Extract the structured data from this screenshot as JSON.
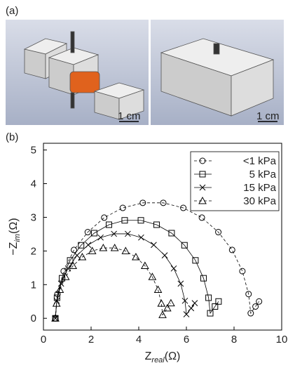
{
  "panel_labels": [
    "(a)",
    "(b)"
  ],
  "scale_bar_labels": [
    "1 cm",
    "1 cm"
  ],
  "chart_data": {
    "type": "line",
    "x_label": {
      "main": "Z",
      "sub": "real",
      "unit": "(Ω)"
    },
    "y_label": {
      "main": "−Z",
      "sub": "im",
      "unit": "(Ω)"
    },
    "xlim": [
      0,
      10
    ],
    "ylim": [
      -0.35,
      5.2
    ],
    "xticks": [
      0,
      2,
      4,
      6,
      8,
      10
    ],
    "yticks": [
      0,
      1,
      2,
      3,
      4,
      5
    ],
    "legend": "upper right",
    "series": [
      {
        "name": "<1 kPa",
        "color": "#000000",
        "marker": "circle",
        "line_style": "dashed",
        "x": [
          0.5,
          0.59,
          0.85,
          1.28,
          1.86,
          2.55,
          3.33,
          4.17,
          5.03,
          5.87,
          6.65,
          7.34,
          7.92,
          8.35,
          8.61,
          8.7,
          8.9,
          9.05
        ],
        "values": [
          0,
          0.72,
          1.4,
          2.03,
          2.56,
          2.99,
          3.28,
          3.43,
          3.43,
          3.28,
          2.99,
          2.56,
          2.03,
          1.4,
          0.72,
          0.15,
          0.35,
          0.5
        ]
      },
      {
        "name": "5 kPa",
        "color": "#000000",
        "marker": "square",
        "line_style": "solid",
        "x": [
          0.5,
          0.57,
          0.78,
          1.12,
          1.58,
          2.13,
          2.75,
          3.41,
          4.09,
          4.75,
          5.38,
          5.92,
          6.38,
          6.72,
          6.93,
          7.0,
          7.2,
          7.35
        ],
        "values": [
          0,
          0.61,
          1.19,
          1.72,
          2.17,
          2.53,
          2.78,
          2.91,
          2.91,
          2.78,
          2.53,
          2.17,
          1.72,
          1.19,
          0.61,
          0.15,
          0.35,
          0.5
        ]
      },
      {
        "name": "15 kPa",
        "color": "#000000",
        "marker": "x",
        "line_style": "solid",
        "x": [
          0.5,
          0.56,
          0.74,
          1.03,
          1.41,
          1.88,
          2.4,
          2.96,
          3.54,
          4.1,
          4.63,
          5.09,
          5.47,
          5.76,
          5.94,
          6.0,
          6.2,
          6.35
        ],
        "values": [
          0,
          0.52,
          1.03,
          1.48,
          1.87,
          2.18,
          2.4,
          2.51,
          2.51,
          2.4,
          2.18,
          1.87,
          1.48,
          1.03,
          0.52,
          0.12,
          0.3,
          0.45
        ]
      },
      {
        "name": "30 kPa",
        "color": "#000000",
        "marker": "triangle",
        "line_style": "dashed",
        "x": [
          0.5,
          0.55,
          0.69,
          0.93,
          1.24,
          1.63,
          2.05,
          2.51,
          2.99,
          3.45,
          3.88,
          4.26,
          4.57,
          4.81,
          4.95,
          5.0,
          5.2,
          5.35
        ],
        "values": [
          0,
          0.44,
          0.85,
          1.23,
          1.56,
          1.82,
          2.0,
          2.09,
          2.09,
          2.0,
          1.82,
          1.56,
          1.23,
          0.85,
          0.44,
          0.1,
          0.3,
          0.45
        ]
      }
    ]
  }
}
